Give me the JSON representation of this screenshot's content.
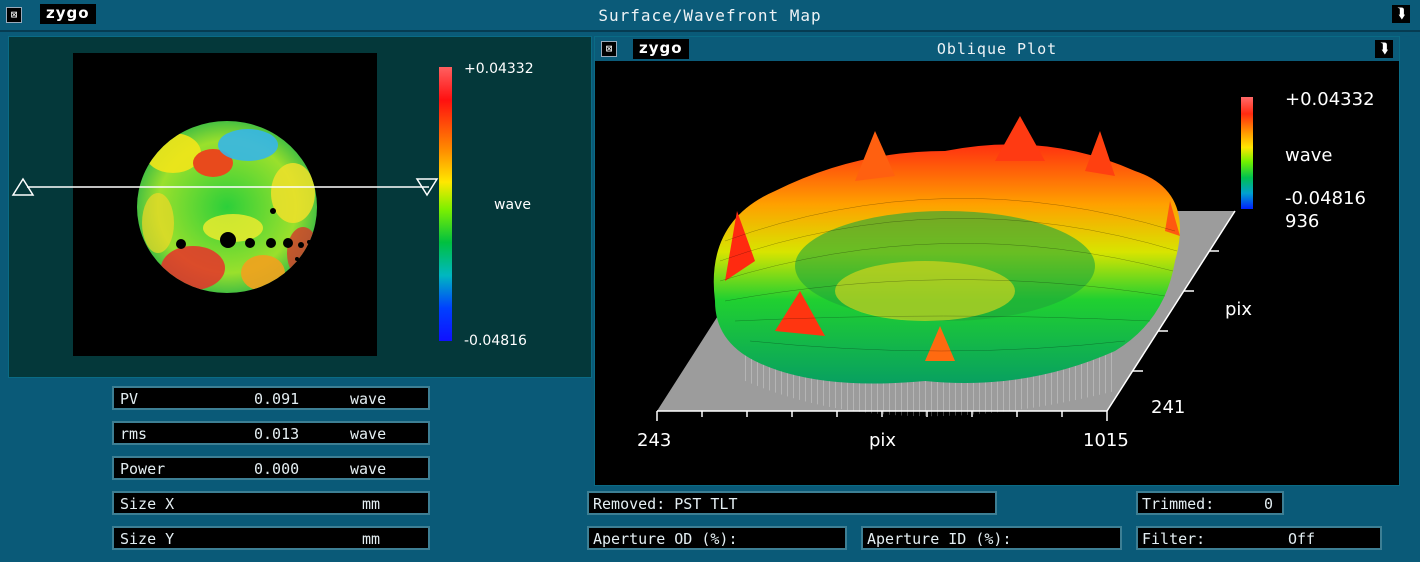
{
  "window": {
    "title": "Surface/Wavefront Map",
    "brand": "zygo"
  },
  "colorbar_left": {
    "max": "+0.04332",
    "min": "-0.04816",
    "unit": "wave"
  },
  "stats": [
    {
      "label": "PV",
      "value": "0.091",
      "unit": "wave"
    },
    {
      "label": "rms",
      "value": "0.013",
      "unit": "wave"
    },
    {
      "label": "Power",
      "value": "0.000",
      "unit": "wave"
    },
    {
      "label": "Size X",
      "value": "",
      "unit": "mm"
    },
    {
      "label": "Size Y",
      "value": "",
      "unit": "mm"
    }
  ],
  "oblique": {
    "title": "Oblique Plot",
    "brand": "zygo",
    "colorbar": {
      "max": "+0.04332",
      "unit": "wave",
      "min": "-0.04816",
      "min_extra": "936"
    },
    "x_axis": {
      "min": "243",
      "max": "1015",
      "label": "pix"
    },
    "y_axis": {
      "max": "241",
      "label": "pix"
    }
  },
  "info": {
    "removed": "Removed: PST TLT",
    "trimmed_label": "Trimmed:",
    "trimmed_value": "0",
    "aperture_od": "Aperture OD (%):",
    "aperture_id": "Aperture ID (%):",
    "filter_label": "Filter:",
    "filter_value": "Off"
  },
  "colors": {
    "bg": "#0a5a78",
    "panel": "#04383a",
    "accent": "#3d7f94"
  }
}
